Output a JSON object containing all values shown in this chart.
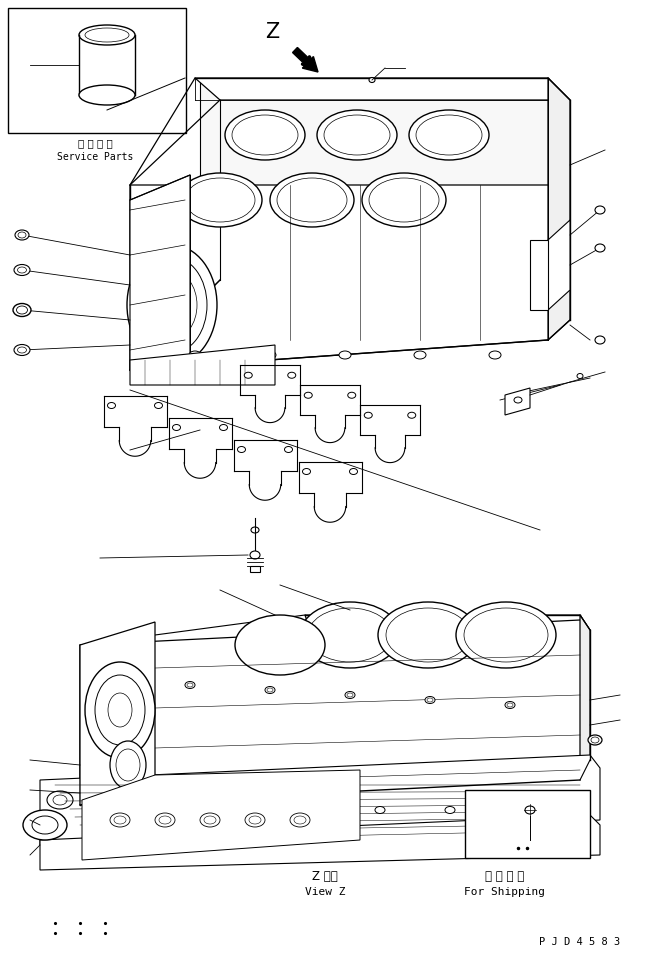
{
  "bg_color": "#ffffff",
  "line_color": "#000000",
  "fig_width": 6.61,
  "fig_height": 9.59,
  "dpi": 100,
  "title_code": "P J D 4 5 8 3",
  "label_service_parts_jp": "補 給 専 用",
  "label_service_parts_en": "Service Parts",
  "label_view_z_jp": "Z 　視",
  "label_view_z_en": "View Z",
  "label_shipping_jp": "運 搬 部 品",
  "label_shipping_en": "For Shipping",
  "label_z": "Z"
}
